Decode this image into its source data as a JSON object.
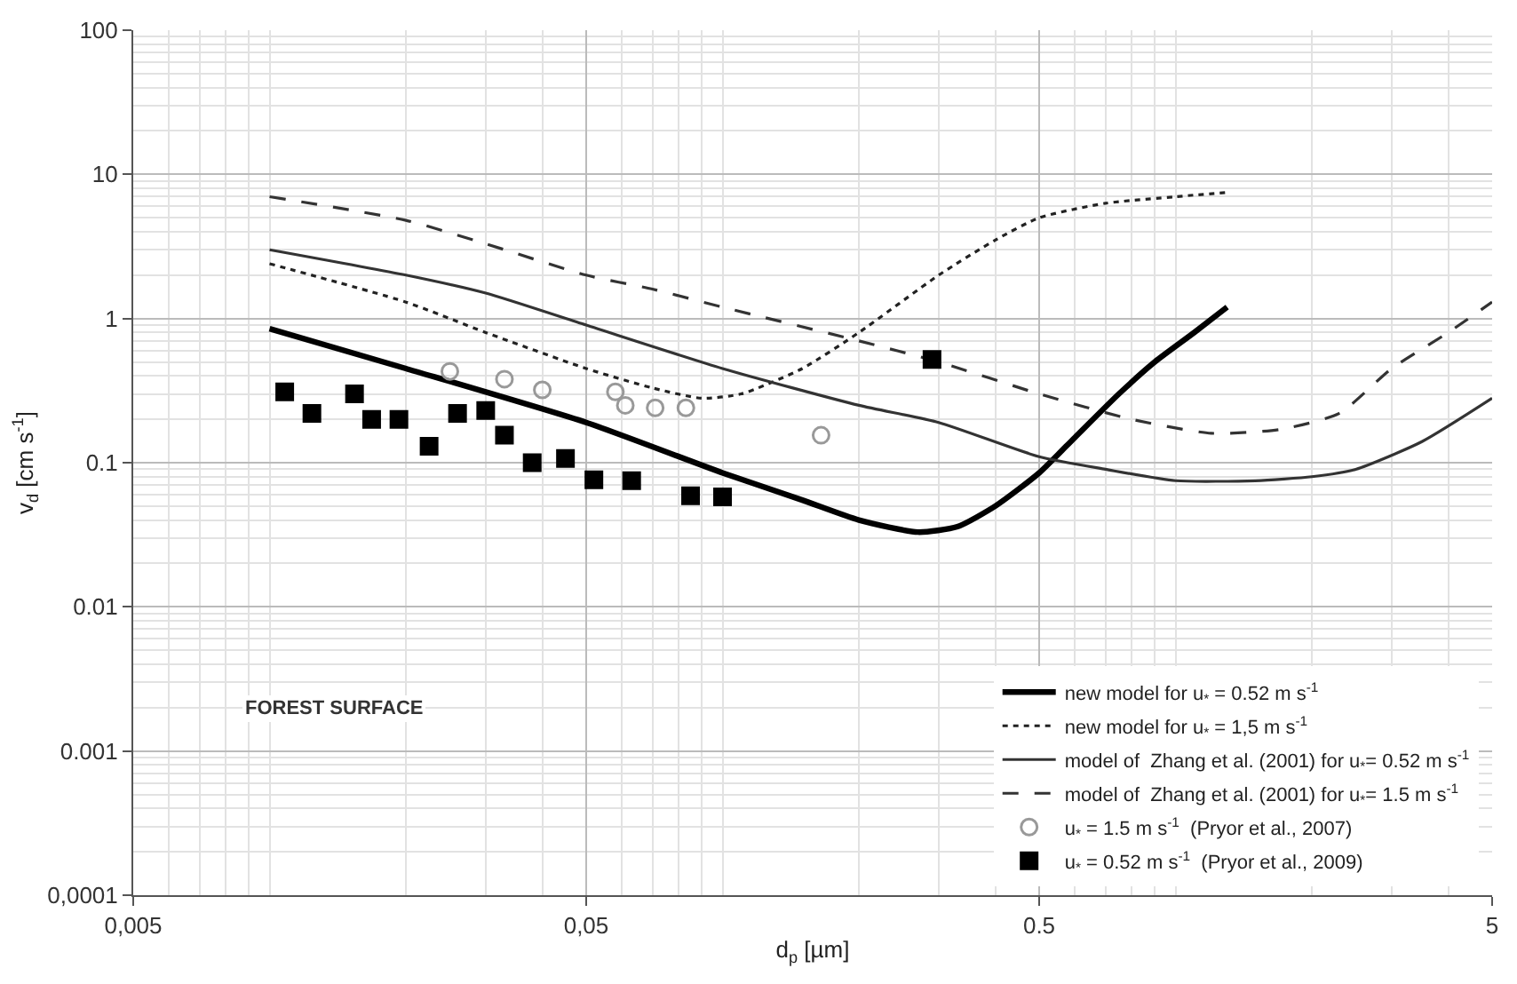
{
  "chart_data": {
    "type": "line",
    "xlabel": "d$_{p}$ [µm]",
    "ylabel": "v$_{d}$ [cm s$^{-1}$]",
    "log": "xy",
    "grid": true,
    "legend": "bottom right",
    "xlim": [
      0.005,
      5
    ],
    "xticks": [
      {
        "value": 0.005,
        "label": "0,005"
      },
      {
        "value": 0.05,
        "label": "0,05"
      },
      {
        "value": 0.5,
        "label": "0.5"
      },
      5
    ],
    "ylim": [
      0.0001,
      100
    ],
    "yticks": [
      {
        "value": 0.0001,
        "label": "0,0001"
      },
      0.001,
      0.01,
      0.1,
      1,
      10,
      100
    ],
    "annotations": [
      "FOREST SURFACE"
    ],
    "series": [
      {
        "name": "new model for u$_{*}$ = 0.52 m s$^{-1}$",
        "color": "#000000",
        "line_style": "solid",
        "marker": "none",
        "x": [
          0.01,
          0.02,
          0.05,
          0.1,
          0.15,
          0.2,
          0.27,
          0.33,
          0.4,
          0.5,
          0.6,
          0.75,
          0.9,
          1.1,
          1.3
        ],
        "values": [
          0.85,
          0.45,
          0.19,
          0.085,
          0.055,
          0.04,
          0.033,
          0.036,
          0.05,
          0.085,
          0.15,
          0.3,
          0.5,
          0.8,
          1.2
        ]
      },
      {
        "name": "new model for u$_{*}$ = 1,5 m s$^{-1}$",
        "color": "#222222",
        "line_style": "dotted",
        "marker": "none",
        "x": [
          0.01,
          0.02,
          0.03,
          0.05,
          0.07,
          0.09,
          0.11,
          0.15,
          0.2,
          0.3,
          0.4,
          0.5,
          0.7,
          1.0,
          1.3
        ],
        "values": [
          2.4,
          1.3,
          0.8,
          0.45,
          0.33,
          0.28,
          0.3,
          0.45,
          0.8,
          2,
          3.5,
          5,
          6.3,
          7,
          7.5
        ]
      },
      {
        "name": "model of  Zhang et al. (2001) for u$_{*}$= 0.52 m s$^{-1}$",
        "color": "#333333",
        "line_style": "solid",
        "marker": "none",
        "x": [
          0.01,
          0.02,
          0.03,
          0.05,
          0.1,
          0.2,
          0.3,
          0.5,
          0.7,
          1,
          1.5,
          2,
          2.5,
          3.5,
          5
        ],
        "values": [
          3,
          2,
          1.5,
          0.9,
          0.45,
          0.25,
          0.19,
          0.11,
          0.09,
          0.075,
          0.075,
          0.08,
          0.09,
          0.14,
          0.28
        ]
      },
      {
        "name": "model of  Zhang et al. (2001) for u$_{*}$= 1.5 m s$^{-1}$",
        "color": "#333333",
        "line_style": "dashed",
        "marker": "none",
        "x": [
          0.01,
          0.02,
          0.03,
          0.05,
          0.07,
          0.1,
          0.2,
          0.3,
          0.5,
          0.8,
          1.2,
          1.7,
          2.3,
          3,
          4,
          5
        ],
        "values": [
          7,
          4.8,
          3.3,
          2,
          1.6,
          1.2,
          0.7,
          0.5,
          0.3,
          0.2,
          0.16,
          0.17,
          0.22,
          0.45,
          0.8,
          1.3
        ]
      },
      {
        "name": "u$_{*}$ = 1.5 m s$^{-1}$  (Pryor et al., 2007)",
        "type": "scatter",
        "color": "#999999",
        "marker": "circle-open",
        "x": [
          0.025,
          0.033,
          0.04,
          0.058,
          0.061,
          0.071,
          0.083,
          0.165
        ],
        "values": [
          0.43,
          0.38,
          0.32,
          0.31,
          0.25,
          0.24,
          0.24,
          0.155
        ]
      },
      {
        "name": "u$_{*}$ = 0.52 m s$^{-1}$  (Pryor et al., 2009)",
        "type": "scatter",
        "color": "#000000",
        "marker": "square",
        "x": [
          0.0108,
          0.0124,
          0.0154,
          0.0168,
          0.0193,
          0.0225,
          0.026,
          0.03,
          0.033,
          0.038,
          0.045,
          0.052,
          0.063,
          0.085,
          0.1,
          0.29
        ],
        "values": [
          0.31,
          0.22,
          0.3,
          0.2,
          0.2,
          0.13,
          0.22,
          0.23,
          0.155,
          0.1,
          0.107,
          0.076,
          0.075,
          0.059,
          0.058,
          0.52
        ]
      }
    ]
  }
}
